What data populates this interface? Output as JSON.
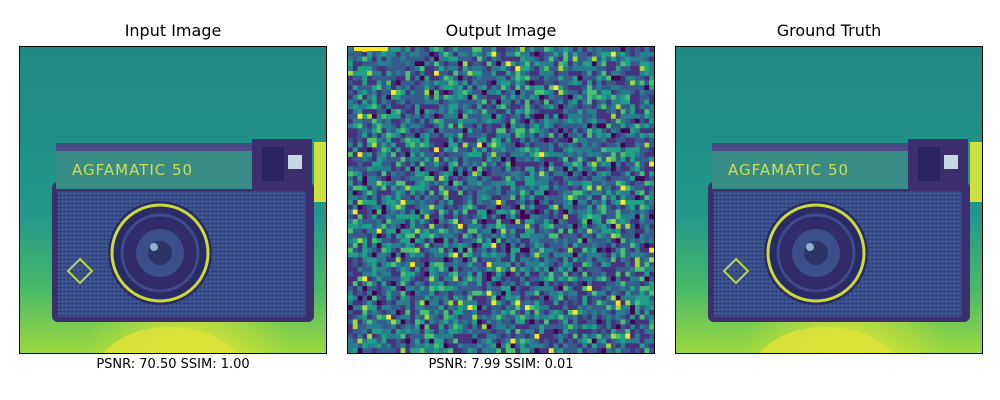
{
  "figure": {
    "panels": [
      {
        "title": "Input Image",
        "caption": "PSNR: 70.50 SSIM: 1.00",
        "kind": "camera-photo"
      },
      {
        "title": "Output Image",
        "caption": "PSNR: 7.99 SSIM: 0.01",
        "kind": "noise"
      },
      {
        "title": "Ground Truth",
        "caption": "",
        "kind": "camera-photo"
      }
    ],
    "camera_label": "AGFAMATIC 50"
  },
  "colors": {
    "colormap": [
      "#440154",
      "#3b528b",
      "#21918c",
      "#5ec962",
      "#fde725"
    ],
    "background_top": "#1f8a84",
    "background_bottom": "#6fcf57",
    "camera_dark": "#3e2f72",
    "camera_body": "#2f4d86",
    "camera_top_plate": "#3a8c86",
    "highlight": "#d8e43a"
  }
}
